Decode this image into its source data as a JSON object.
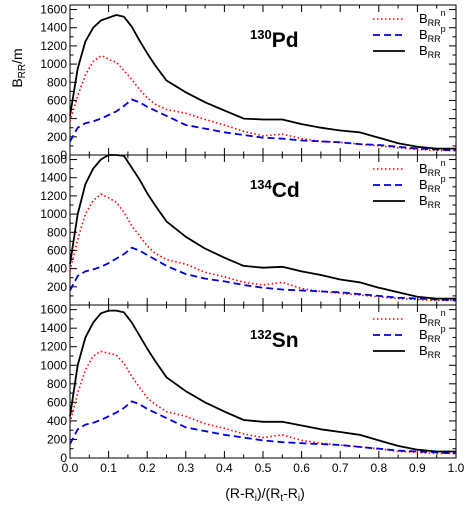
{
  "chart_data": {
    "type": "line",
    "ylabel_main": "B",
    "ylabel_sub": "RR",
    "ylabel_tail": "/m",
    "xlabel": {
      "p1": "(R-R",
      "s1": "i",
      "p2": ")/(R",
      "s2": "t",
      "p3": "-R",
      "s3": "i",
      "p4": ")"
    },
    "xlim": [
      0.0,
      1.0
    ],
    "ylim": [
      0,
      1650
    ],
    "x_ticks": [
      "0.0",
      "0.1",
      "0.2",
      "0.3",
      "0.4",
      "0.5",
      "0.6",
      "0.7",
      "0.8",
      "0.9",
      "1.0"
    ],
    "legend_placement": "top-right",
    "series_styles": [
      {
        "key": "n",
        "color": "#ff0000",
        "dash": "1.5,2.5",
        "width": 1.6
      },
      {
        "key": "p",
        "color": "#0000dd",
        "dash": "7,4",
        "width": 1.8
      },
      {
        "key": "tot",
        "color": "#000000",
        "dash": "",
        "width": 1.8
      }
    ],
    "panels": [
      {
        "nucleus_mass": "130",
        "nucleus_symbol": "Pd",
        "y_ticks": [
          "0",
          "200",
          "400",
          "600",
          "800",
          "1000",
          "1200",
          "1400",
          "1600"
        ],
        "legend": [
          {
            "base": "B",
            "sub": "RR",
            "sup": "n"
          },
          {
            "base": "B",
            "sub": "RR",
            "sup": "p"
          },
          {
            "base": "B",
            "sub": "RR",
            "sup": ""
          }
        ],
        "series": [
          {
            "key": "n",
            "x": [
              0,
              0.02,
              0.04,
              0.06,
              0.08,
              0.09,
              0.1,
              0.12,
              0.14,
              0.16,
              0.18,
              0.2,
              0.22,
              0.25,
              0.3,
              0.35,
              0.4,
              0.45,
              0.5,
              0.55,
              0.6,
              0.65,
              0.7,
              0.75,
              0.8,
              0.85,
              0.9,
              0.95,
              1.0
            ],
            "y": [
              370,
              650,
              880,
              1030,
              1090,
              1080,
              1050,
              1020,
              930,
              830,
              720,
              630,
              560,
              500,
              460,
              390,
              330,
              260,
              210,
              230,
              180,
              150,
              140,
              120,
              100,
              80,
              60,
              50,
              50
            ]
          },
          {
            "key": "p",
            "x": [
              0,
              0.02,
              0.04,
              0.06,
              0.08,
              0.1,
              0.12,
              0.14,
              0.16,
              0.18,
              0.2,
              0.25,
              0.3,
              0.35,
              0.4,
              0.45,
              0.5,
              0.55,
              0.6,
              0.65,
              0.7,
              0.75,
              0.8,
              0.85,
              0.9,
              0.95,
              1.0
            ],
            "y": [
              150,
              300,
              350,
              370,
              400,
              440,
              480,
              540,
              610,
              580,
              530,
              430,
              330,
              290,
              250,
              220,
              190,
              180,
              160,
              150,
              140,
              120,
              110,
              90,
              70,
              60,
              50
            ]
          },
          {
            "key": "tot",
            "x": [
              0,
              0.02,
              0.04,
              0.06,
              0.08,
              0.1,
              0.12,
              0.14,
              0.16,
              0.18,
              0.2,
              0.22,
              0.25,
              0.3,
              0.35,
              0.4,
              0.45,
              0.5,
              0.55,
              0.6,
              0.65,
              0.7,
              0.75,
              0.8,
              0.85,
              0.9,
              0.95,
              1.0
            ],
            "y": [
              430,
              950,
              1250,
              1400,
              1480,
              1510,
              1540,
              1520,
              1410,
              1260,
              1120,
              990,
              820,
              690,
              580,
              490,
              400,
              390,
              390,
              340,
              300,
              270,
              250,
              190,
              130,
              90,
              70,
              70
            ]
          }
        ]
      },
      {
        "nucleus_mass": "134",
        "nucleus_symbol": "Cd",
        "y_ticks": [
          "",
          "200",
          "400",
          "600",
          "800",
          "1000",
          "1200",
          "1400",
          "1600"
        ],
        "legend": [
          {
            "base": "B",
            "sub": "RR",
            "sup": "n"
          },
          {
            "base": "B",
            "sub": "RR",
            "sup": "p"
          },
          {
            "base": "B",
            "sub": "RR",
            "sup": ""
          }
        ],
        "series": [
          {
            "key": "n",
            "x": [
              0,
              0.02,
              0.04,
              0.06,
              0.08,
              0.1,
              0.12,
              0.14,
              0.16,
              0.18,
              0.2,
              0.22,
              0.25,
              0.3,
              0.35,
              0.4,
              0.45,
              0.5,
              0.55,
              0.6,
              0.65,
              0.7,
              0.75,
              0.8,
              0.85,
              0.9,
              0.95,
              1.0
            ],
            "y": [
              380,
              720,
              1000,
              1150,
              1220,
              1180,
              1130,
              1020,
              870,
              760,
              650,
              570,
              500,
              450,
              360,
              310,
              250,
              220,
              250,
              180,
              150,
              130,
              110,
              90,
              70,
              60,
              50,
              50
            ]
          },
          {
            "key": "p",
            "x": [
              0,
              0.02,
              0.04,
              0.06,
              0.08,
              0.1,
              0.12,
              0.14,
              0.16,
              0.18,
              0.2,
              0.25,
              0.3,
              0.35,
              0.4,
              0.45,
              0.5,
              0.55,
              0.6,
              0.65,
              0.7,
              0.75,
              0.8,
              0.85,
              0.9,
              0.95,
              1.0
            ],
            "y": [
              160,
              320,
              370,
              390,
              420,
              460,
              510,
              560,
              630,
              600,
              550,
              430,
              340,
              290,
              260,
              220,
              190,
              170,
              160,
              150,
              140,
              120,
              100,
              80,
              70,
              60,
              50
            ]
          },
          {
            "key": "tot",
            "x": [
              0,
              0.02,
              0.04,
              0.06,
              0.08,
              0.1,
              0.12,
              0.14,
              0.16,
              0.18,
              0.2,
              0.22,
              0.25,
              0.3,
              0.35,
              0.4,
              0.45,
              0.5,
              0.55,
              0.6,
              0.65,
              0.7,
              0.75,
              0.8,
              0.85,
              0.9,
              0.95,
              1.0
            ],
            "y": [
              450,
              1000,
              1330,
              1500,
              1600,
              1650,
              1650,
              1640,
              1510,
              1380,
              1230,
              1100,
              920,
              750,
              620,
              520,
              430,
              410,
              420,
              370,
              330,
              280,
              250,
              190,
              140,
              90,
              70,
              70
            ]
          }
        ]
      },
      {
        "nucleus_mass": "132",
        "nucleus_symbol": "Sn",
        "y_ticks": [
          "0",
          "200",
          "400",
          "600",
          "800",
          "1000",
          "1200",
          "1400",
          "1600"
        ],
        "legend": [
          {
            "base": "B",
            "sub": "RR",
            "sup": "n"
          },
          {
            "base": "B",
            "sub": "RR",
            "sup": "p"
          },
          {
            "base": "B",
            "sub": "RR",
            "sup": ""
          }
        ],
        "series": [
          {
            "key": "n",
            "x": [
              0,
              0.02,
              0.04,
              0.06,
              0.08,
              0.1,
              0.12,
              0.14,
              0.16,
              0.18,
              0.2,
              0.22,
              0.25,
              0.3,
              0.35,
              0.4,
              0.45,
              0.5,
              0.55,
              0.6,
              0.65,
              0.7,
              0.75,
              0.8,
              0.85,
              0.9,
              0.95,
              1.0
            ],
            "y": [
              380,
              700,
              950,
              1100,
              1150,
              1130,
              1110,
              1020,
              880,
              760,
              650,
              580,
              500,
              450,
              370,
              320,
              260,
              220,
              250,
              190,
              160,
              140,
              120,
              100,
              70,
              60,
              50,
              50
            ]
          },
          {
            "key": "p",
            "x": [
              0,
              0.02,
              0.04,
              0.06,
              0.08,
              0.1,
              0.12,
              0.14,
              0.16,
              0.18,
              0.2,
              0.25,
              0.3,
              0.35,
              0.4,
              0.45,
              0.5,
              0.55,
              0.6,
              0.65,
              0.7,
              0.75,
              0.8,
              0.85,
              0.9,
              0.95,
              1.0
            ],
            "y": [
              150,
              310,
              360,
              380,
              410,
              450,
              490,
              540,
              610,
              580,
              530,
              430,
              330,
              290,
              250,
              220,
              190,
              170,
              160,
              150,
              140,
              120,
              100,
              80,
              70,
              60,
              50
            ]
          },
          {
            "key": "tot",
            "x": [
              0,
              0.02,
              0.04,
              0.06,
              0.08,
              0.1,
              0.12,
              0.14,
              0.16,
              0.18,
              0.2,
              0.22,
              0.25,
              0.3,
              0.35,
              0.4,
              0.45,
              0.5,
              0.55,
              0.6,
              0.65,
              0.7,
              0.75,
              0.8,
              0.85,
              0.9,
              0.95,
              1.0
            ],
            "y": [
              450,
              1000,
              1300,
              1460,
              1560,
              1590,
              1590,
              1570,
              1460,
              1320,
              1180,
              1050,
              870,
              720,
              600,
              500,
              410,
              390,
              390,
              350,
              310,
              280,
              250,
              190,
              130,
              90,
              70,
              70
            ]
          }
        ]
      }
    ]
  }
}
